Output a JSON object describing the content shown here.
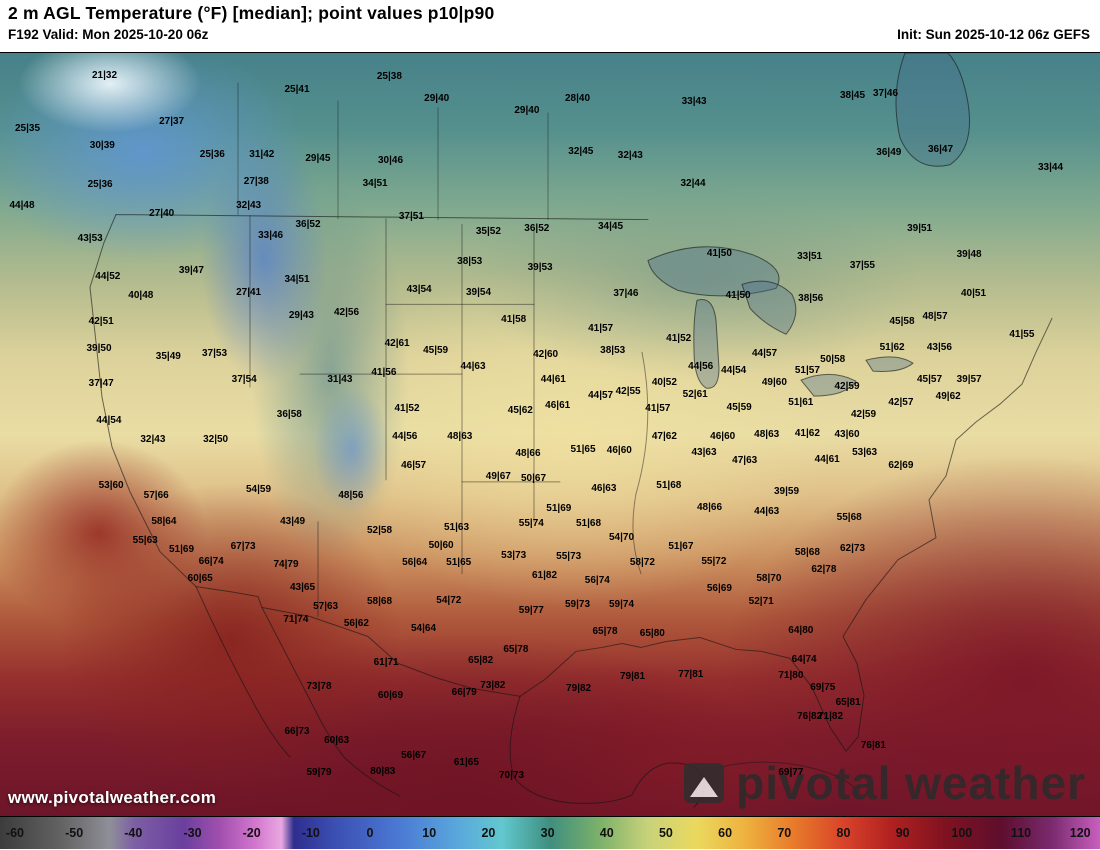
{
  "header": {
    "title": "2 m AGL Temperature (°F) [median]; point values p10|p90",
    "valid": "F192 Valid: Mon 2025-10-20 06z",
    "init": "Init: Sun 2025-10-12 06z GEFS"
  },
  "watermark": {
    "url": "www.pivotalweather.com",
    "brand": "pivotal weather"
  },
  "colorbar": {
    "ticks": [
      -60,
      -50,
      -40,
      -30,
      -20,
      -10,
      0,
      10,
      20,
      30,
      40,
      50,
      60,
      70,
      80,
      90,
      100,
      110,
      120
    ],
    "stops": [
      {
        "v": -60,
        "c": "#3c3c3c"
      },
      {
        "v": -50,
        "c": "#636363"
      },
      {
        "v": -42,
        "c": "#8f8f98"
      },
      {
        "v": -38,
        "c": "#7d5fa5"
      },
      {
        "v": -30,
        "c": "#6a3f9e"
      },
      {
        "v": -24,
        "c": "#a14fae"
      },
      {
        "v": -18,
        "c": "#d478cf"
      },
      {
        "v": -14,
        "c": "#e8a8e0"
      },
      {
        "v": -12,
        "c": "#2e2e8e"
      },
      {
        "v": -5,
        "c": "#3c50b4"
      },
      {
        "v": 5,
        "c": "#4a78d2"
      },
      {
        "v": 15,
        "c": "#5aa8dc"
      },
      {
        "v": 22,
        "c": "#62c8cf"
      },
      {
        "v": 30,
        "c": "#3f8f7f"
      },
      {
        "v": 38,
        "c": "#7ab069"
      },
      {
        "v": 46,
        "c": "#c8d27a"
      },
      {
        "v": 54,
        "c": "#ead95e"
      },
      {
        "v": 62,
        "c": "#eeb13e"
      },
      {
        "v": 70,
        "c": "#e87a2a"
      },
      {
        "v": 78,
        "c": "#d8432a"
      },
      {
        "v": 86,
        "c": "#b02020"
      },
      {
        "v": 95,
        "c": "#7e1220"
      },
      {
        "v": 104,
        "c": "#5e0e2e"
      },
      {
        "v": 112,
        "c": "#7a2a6e"
      },
      {
        "v": 120,
        "c": "#c95fc0"
      }
    ]
  },
  "map": {
    "points": [
      {
        "x": 9.5,
        "y": 3.0,
        "v": "21|32"
      },
      {
        "x": 27.0,
        "y": 4.9,
        "v": "25|41"
      },
      {
        "x": 35.4,
        "y": 3.1,
        "v": "25|38"
      },
      {
        "x": 39.7,
        "y": 6.0,
        "v": "29|40"
      },
      {
        "x": 52.5,
        "y": 6.0,
        "v": "28|40"
      },
      {
        "x": 63.1,
        "y": 6.4,
        "v": "33|43"
      },
      {
        "x": 77.5,
        "y": 5.6,
        "v": "38|45"
      },
      {
        "x": 80.5,
        "y": 5.4,
        "v": "37|46"
      },
      {
        "x": 2.5,
        "y": 10.0,
        "v": "25|35"
      },
      {
        "x": 15.6,
        "y": 9.1,
        "v": "27|37"
      },
      {
        "x": 47.9,
        "y": 7.6,
        "v": "29|40"
      },
      {
        "x": 9.3,
        "y": 12.2,
        "v": "30|39"
      },
      {
        "x": 19.3,
        "y": 13.4,
        "v": "25|36"
      },
      {
        "x": 23.8,
        "y": 13.4,
        "v": "31|42"
      },
      {
        "x": 28.9,
        "y": 13.9,
        "v": "29|45"
      },
      {
        "x": 35.5,
        "y": 14.2,
        "v": "30|46"
      },
      {
        "x": 52.8,
        "y": 13.0,
        "v": "32|45"
      },
      {
        "x": 57.3,
        "y": 13.5,
        "v": "32|43"
      },
      {
        "x": 80.8,
        "y": 13.1,
        "v": "36|49"
      },
      {
        "x": 85.5,
        "y": 12.7,
        "v": "36|47"
      },
      {
        "x": 95.5,
        "y": 15.1,
        "v": "33|44"
      },
      {
        "x": 9.1,
        "y": 17.3,
        "v": "25|36"
      },
      {
        "x": 23.3,
        "y": 16.9,
        "v": "27|38"
      },
      {
        "x": 34.1,
        "y": 17.2,
        "v": "34|51"
      },
      {
        "x": 63.0,
        "y": 17.2,
        "v": "32|44"
      },
      {
        "x": 2.0,
        "y": 20.1,
        "v": "44|48"
      },
      {
        "x": 14.7,
        "y": 21.1,
        "v": "27|40"
      },
      {
        "x": 22.6,
        "y": 20.1,
        "v": "32|43"
      },
      {
        "x": 28.0,
        "y": 22.6,
        "v": "36|52"
      },
      {
        "x": 24.6,
        "y": 24.0,
        "v": "33|46"
      },
      {
        "x": 37.4,
        "y": 21.5,
        "v": "37|51"
      },
      {
        "x": 44.4,
        "y": 23.4,
        "v": "35|52"
      },
      {
        "x": 48.8,
        "y": 23.1,
        "v": "36|52"
      },
      {
        "x": 55.5,
        "y": 22.8,
        "v": "34|45"
      },
      {
        "x": 65.4,
        "y": 26.4,
        "v": "41|50"
      },
      {
        "x": 73.6,
        "y": 26.8,
        "v": "33|51"
      },
      {
        "x": 83.6,
        "y": 23.1,
        "v": "39|51"
      },
      {
        "x": 8.2,
        "y": 24.4,
        "v": "43|53"
      },
      {
        "x": 42.7,
        "y": 27.4,
        "v": "38|53"
      },
      {
        "x": 49.1,
        "y": 28.2,
        "v": "39|53"
      },
      {
        "x": 78.4,
        "y": 27.9,
        "v": "37|55"
      },
      {
        "x": 88.1,
        "y": 26.5,
        "v": "39|48"
      },
      {
        "x": 9.8,
        "y": 29.3,
        "v": "44|52"
      },
      {
        "x": 17.4,
        "y": 28.6,
        "v": "39|47"
      },
      {
        "x": 27.0,
        "y": 29.8,
        "v": "34|51"
      },
      {
        "x": 38.1,
        "y": 31.0,
        "v": "43|54"
      },
      {
        "x": 43.5,
        "y": 31.5,
        "v": "39|54"
      },
      {
        "x": 56.9,
        "y": 31.6,
        "v": "37|46"
      },
      {
        "x": 67.1,
        "y": 31.8,
        "v": "41|50"
      },
      {
        "x": 73.7,
        "y": 32.2,
        "v": "38|56"
      },
      {
        "x": 88.5,
        "y": 31.6,
        "v": "40|51"
      },
      {
        "x": 12.8,
        "y": 31.9,
        "v": "40|48"
      },
      {
        "x": 22.6,
        "y": 31.5,
        "v": "27|41"
      },
      {
        "x": 27.4,
        "y": 34.5,
        "v": "29|43"
      },
      {
        "x": 31.5,
        "y": 34.1,
        "v": "42|56"
      },
      {
        "x": 46.7,
        "y": 35.0,
        "v": "41|58"
      },
      {
        "x": 54.6,
        "y": 36.2,
        "v": "41|57"
      },
      {
        "x": 61.7,
        "y": 37.5,
        "v": "41|52"
      },
      {
        "x": 69.5,
        "y": 39.5,
        "v": "44|57"
      },
      {
        "x": 82.0,
        "y": 35.2,
        "v": "45|58"
      },
      {
        "x": 85.0,
        "y": 34.6,
        "v": "48|57"
      },
      {
        "x": 92.9,
        "y": 36.9,
        "v": "41|55"
      },
      {
        "x": 9.2,
        "y": 35.2,
        "v": "42|51"
      },
      {
        "x": 9.0,
        "y": 38.8,
        "v": "39|50"
      },
      {
        "x": 15.3,
        "y": 39.8,
        "v": "35|49"
      },
      {
        "x": 19.5,
        "y": 39.5,
        "v": "37|53"
      },
      {
        "x": 36.1,
        "y": 38.1,
        "v": "42|61"
      },
      {
        "x": 39.6,
        "y": 39.0,
        "v": "45|59"
      },
      {
        "x": 49.6,
        "y": 39.6,
        "v": "42|60"
      },
      {
        "x": 55.7,
        "y": 39.0,
        "v": "38|53"
      },
      {
        "x": 63.7,
        "y": 41.2,
        "v": "44|56"
      },
      {
        "x": 75.7,
        "y": 40.2,
        "v": "50|58"
      },
      {
        "x": 81.1,
        "y": 38.6,
        "v": "51|62"
      },
      {
        "x": 85.4,
        "y": 38.6,
        "v": "43|56"
      },
      {
        "x": 9.2,
        "y": 43.4,
        "v": "37|47"
      },
      {
        "x": 22.2,
        "y": 42.9,
        "v": "37|54"
      },
      {
        "x": 30.9,
        "y": 42.8,
        "v": "31|43"
      },
      {
        "x": 34.9,
        "y": 41.9,
        "v": "41|56"
      },
      {
        "x": 43.0,
        "y": 41.1,
        "v": "44|63"
      },
      {
        "x": 50.3,
        "y": 42.9,
        "v": "44|61"
      },
      {
        "x": 57.1,
        "y": 44.4,
        "v": "42|55"
      },
      {
        "x": 60.4,
        "y": 43.2,
        "v": "40|52"
      },
      {
        "x": 63.2,
        "y": 44.8,
        "v": "52|61"
      },
      {
        "x": 66.7,
        "y": 41.7,
        "v": "44|54"
      },
      {
        "x": 70.4,
        "y": 43.2,
        "v": "49|60"
      },
      {
        "x": 73.4,
        "y": 41.7,
        "v": "51|57"
      },
      {
        "x": 77.0,
        "y": 43.8,
        "v": "42|59"
      },
      {
        "x": 84.5,
        "y": 42.8,
        "v": "45|57"
      },
      {
        "x": 88.1,
        "y": 42.8,
        "v": "39|57"
      },
      {
        "x": 86.2,
        "y": 45.1,
        "v": "49|62"
      },
      {
        "x": 81.9,
        "y": 45.9,
        "v": "42|57"
      },
      {
        "x": 9.9,
        "y": 48.2,
        "v": "44|54"
      },
      {
        "x": 26.3,
        "y": 47.4,
        "v": "36|58"
      },
      {
        "x": 37.0,
        "y": 46.6,
        "v": "41|52"
      },
      {
        "x": 47.3,
        "y": 46.9,
        "v": "45|62"
      },
      {
        "x": 50.7,
        "y": 46.2,
        "v": "46|61"
      },
      {
        "x": 54.6,
        "y": 45.0,
        "v": "44|57"
      },
      {
        "x": 59.8,
        "y": 46.7,
        "v": "41|57"
      },
      {
        "x": 67.2,
        "y": 46.5,
        "v": "45|59"
      },
      {
        "x": 72.8,
        "y": 45.9,
        "v": "51|61"
      },
      {
        "x": 78.5,
        "y": 47.4,
        "v": "42|59"
      },
      {
        "x": 13.9,
        "y": 50.7,
        "v": "32|43"
      },
      {
        "x": 19.6,
        "y": 50.7,
        "v": "32|50"
      },
      {
        "x": 36.8,
        "y": 50.3,
        "v": "44|56"
      },
      {
        "x": 41.8,
        "y": 50.3,
        "v": "48|63"
      },
      {
        "x": 60.4,
        "y": 50.3,
        "v": "47|62"
      },
      {
        "x": 65.7,
        "y": 50.3,
        "v": "46|60"
      },
      {
        "x": 69.7,
        "y": 50.0,
        "v": "48|63"
      },
      {
        "x": 73.4,
        "y": 49.9,
        "v": "41|62"
      },
      {
        "x": 77.0,
        "y": 50.0,
        "v": "43|60"
      },
      {
        "x": 78.6,
        "y": 52.4,
        "v": "53|63"
      },
      {
        "x": 48.0,
        "y": 52.6,
        "v": "48|66"
      },
      {
        "x": 53.0,
        "y": 52.0,
        "v": "51|65"
      },
      {
        "x": 56.3,
        "y": 52.2,
        "v": "46|60"
      },
      {
        "x": 64.0,
        "y": 52.4,
        "v": "43|63"
      },
      {
        "x": 67.7,
        "y": 53.5,
        "v": "47|63"
      },
      {
        "x": 75.2,
        "y": 53.3,
        "v": "44|61"
      },
      {
        "x": 81.9,
        "y": 54.1,
        "v": "62|69"
      },
      {
        "x": 37.6,
        "y": 54.1,
        "v": "46|57"
      },
      {
        "x": 10.1,
        "y": 56.7,
        "v": "53|60"
      },
      {
        "x": 14.2,
        "y": 58.0,
        "v": "57|66"
      },
      {
        "x": 23.5,
        "y": 57.3,
        "v": "54|59"
      },
      {
        "x": 31.9,
        "y": 58.0,
        "v": "48|56"
      },
      {
        "x": 45.3,
        "y": 55.6,
        "v": "49|67"
      },
      {
        "x": 48.5,
        "y": 55.8,
        "v": "50|67"
      },
      {
        "x": 54.9,
        "y": 57.2,
        "v": "46|63"
      },
      {
        "x": 60.8,
        "y": 56.8,
        "v": "51|68"
      },
      {
        "x": 64.5,
        "y": 59.6,
        "v": "48|66"
      },
      {
        "x": 69.7,
        "y": 60.2,
        "v": "44|63"
      },
      {
        "x": 71.5,
        "y": 57.6,
        "v": "39|59"
      },
      {
        "x": 77.2,
        "y": 60.9,
        "v": "55|68"
      },
      {
        "x": 14.9,
        "y": 61.5,
        "v": "58|64"
      },
      {
        "x": 26.6,
        "y": 61.5,
        "v": "43|49"
      },
      {
        "x": 34.5,
        "y": 62.7,
        "v": "52|58"
      },
      {
        "x": 50.8,
        "y": 59.8,
        "v": "51|69"
      },
      {
        "x": 41.5,
        "y": 62.2,
        "v": "51|63"
      },
      {
        "x": 48.3,
        "y": 61.7,
        "v": "55|74"
      },
      {
        "x": 53.5,
        "y": 61.7,
        "v": "51|68"
      },
      {
        "x": 56.5,
        "y": 63.6,
        "v": "54|70"
      },
      {
        "x": 61.9,
        "y": 64.8,
        "v": "51|67"
      },
      {
        "x": 13.2,
        "y": 63.9,
        "v": "55|63"
      },
      {
        "x": 16.5,
        "y": 65.2,
        "v": "51|69"
      },
      {
        "x": 19.2,
        "y": 66.7,
        "v": "66|74"
      },
      {
        "x": 22.1,
        "y": 64.7,
        "v": "67|73"
      },
      {
        "x": 26.0,
        "y": 67.1,
        "v": "74|79"
      },
      {
        "x": 40.1,
        "y": 64.6,
        "v": "50|60"
      },
      {
        "x": 37.7,
        "y": 66.8,
        "v": "56|64"
      },
      {
        "x": 41.7,
        "y": 66.8,
        "v": "51|65"
      },
      {
        "x": 46.7,
        "y": 65.9,
        "v": "53|73"
      },
      {
        "x": 51.7,
        "y": 66.1,
        "v": "55|73"
      },
      {
        "x": 58.4,
        "y": 66.9,
        "v": "58|72"
      },
      {
        "x": 64.9,
        "y": 66.7,
        "v": "55|72"
      },
      {
        "x": 73.4,
        "y": 65.5,
        "v": "58|68"
      },
      {
        "x": 77.5,
        "y": 65.0,
        "v": "62|73"
      },
      {
        "x": 18.2,
        "y": 68.9,
        "v": "60|65"
      },
      {
        "x": 49.5,
        "y": 68.6,
        "v": "61|82"
      },
      {
        "x": 54.3,
        "y": 69.2,
        "v": "56|74"
      },
      {
        "x": 65.4,
        "y": 70.2,
        "v": "56|69"
      },
      {
        "x": 69.9,
        "y": 68.9,
        "v": "58|70"
      },
      {
        "x": 74.9,
        "y": 67.7,
        "v": "62|78"
      },
      {
        "x": 27.5,
        "y": 70.1,
        "v": "43|65"
      },
      {
        "x": 29.6,
        "y": 72.6,
        "v": "57|63"
      },
      {
        "x": 34.5,
        "y": 72.0,
        "v": "58|68"
      },
      {
        "x": 40.8,
        "y": 71.8,
        "v": "54|72"
      },
      {
        "x": 69.2,
        "y": 72.0,
        "v": "52|71"
      },
      {
        "x": 48.3,
        "y": 73.1,
        "v": "59|77"
      },
      {
        "x": 52.5,
        "y": 72.4,
        "v": "59|73"
      },
      {
        "x": 56.5,
        "y": 72.4,
        "v": "59|74"
      },
      {
        "x": 26.9,
        "y": 74.3,
        "v": "71|74"
      },
      {
        "x": 32.4,
        "y": 74.8,
        "v": "56|62"
      },
      {
        "x": 38.5,
        "y": 75.5,
        "v": "54|64"
      },
      {
        "x": 55.0,
        "y": 75.9,
        "v": "65|78"
      },
      {
        "x": 59.3,
        "y": 76.1,
        "v": "65|80"
      },
      {
        "x": 72.8,
        "y": 75.7,
        "v": "64|80"
      },
      {
        "x": 35.1,
        "y": 79.9,
        "v": "61|71"
      },
      {
        "x": 43.7,
        "y": 79.7,
        "v": "65|82"
      },
      {
        "x": 46.9,
        "y": 78.2,
        "v": "65|78"
      },
      {
        "x": 52.6,
        "y": 83.3,
        "v": "79|82"
      },
      {
        "x": 57.5,
        "y": 81.8,
        "v": "79|81"
      },
      {
        "x": 62.8,
        "y": 81.5,
        "v": "77|81"
      },
      {
        "x": 73.1,
        "y": 79.5,
        "v": "64|74"
      },
      {
        "x": 71.9,
        "y": 81.6,
        "v": "71|80"
      },
      {
        "x": 29.0,
        "y": 83.1,
        "v": "73|78"
      },
      {
        "x": 35.5,
        "y": 84.3,
        "v": "60|69"
      },
      {
        "x": 42.2,
        "y": 83.9,
        "v": "66|79"
      },
      {
        "x": 44.8,
        "y": 82.9,
        "v": "73|82"
      },
      {
        "x": 74.8,
        "y": 83.2,
        "v": "69|75"
      },
      {
        "x": 77.1,
        "y": 85.2,
        "v": "65|81"
      },
      {
        "x": 73.6,
        "y": 87.0,
        "v": "76|82"
      },
      {
        "x": 75.5,
        "y": 87.0,
        "v": "71|82"
      },
      {
        "x": 27.0,
        "y": 89.0,
        "v": "66|73"
      },
      {
        "x": 30.6,
        "y": 90.2,
        "v": "60|63"
      },
      {
        "x": 37.6,
        "y": 92.1,
        "v": "56|67"
      },
      {
        "x": 42.4,
        "y": 93.0,
        "v": "61|65"
      },
      {
        "x": 46.5,
        "y": 94.8,
        "v": "70|73"
      },
      {
        "x": 79.4,
        "y": 90.8,
        "v": "76|81"
      },
      {
        "x": 29.0,
        "y": 94.4,
        "v": "59|79"
      },
      {
        "x": 34.8,
        "y": 94.2,
        "v": "80|83"
      },
      {
        "x": 71.9,
        "y": 94.4,
        "v": "69|77"
      }
    ]
  }
}
